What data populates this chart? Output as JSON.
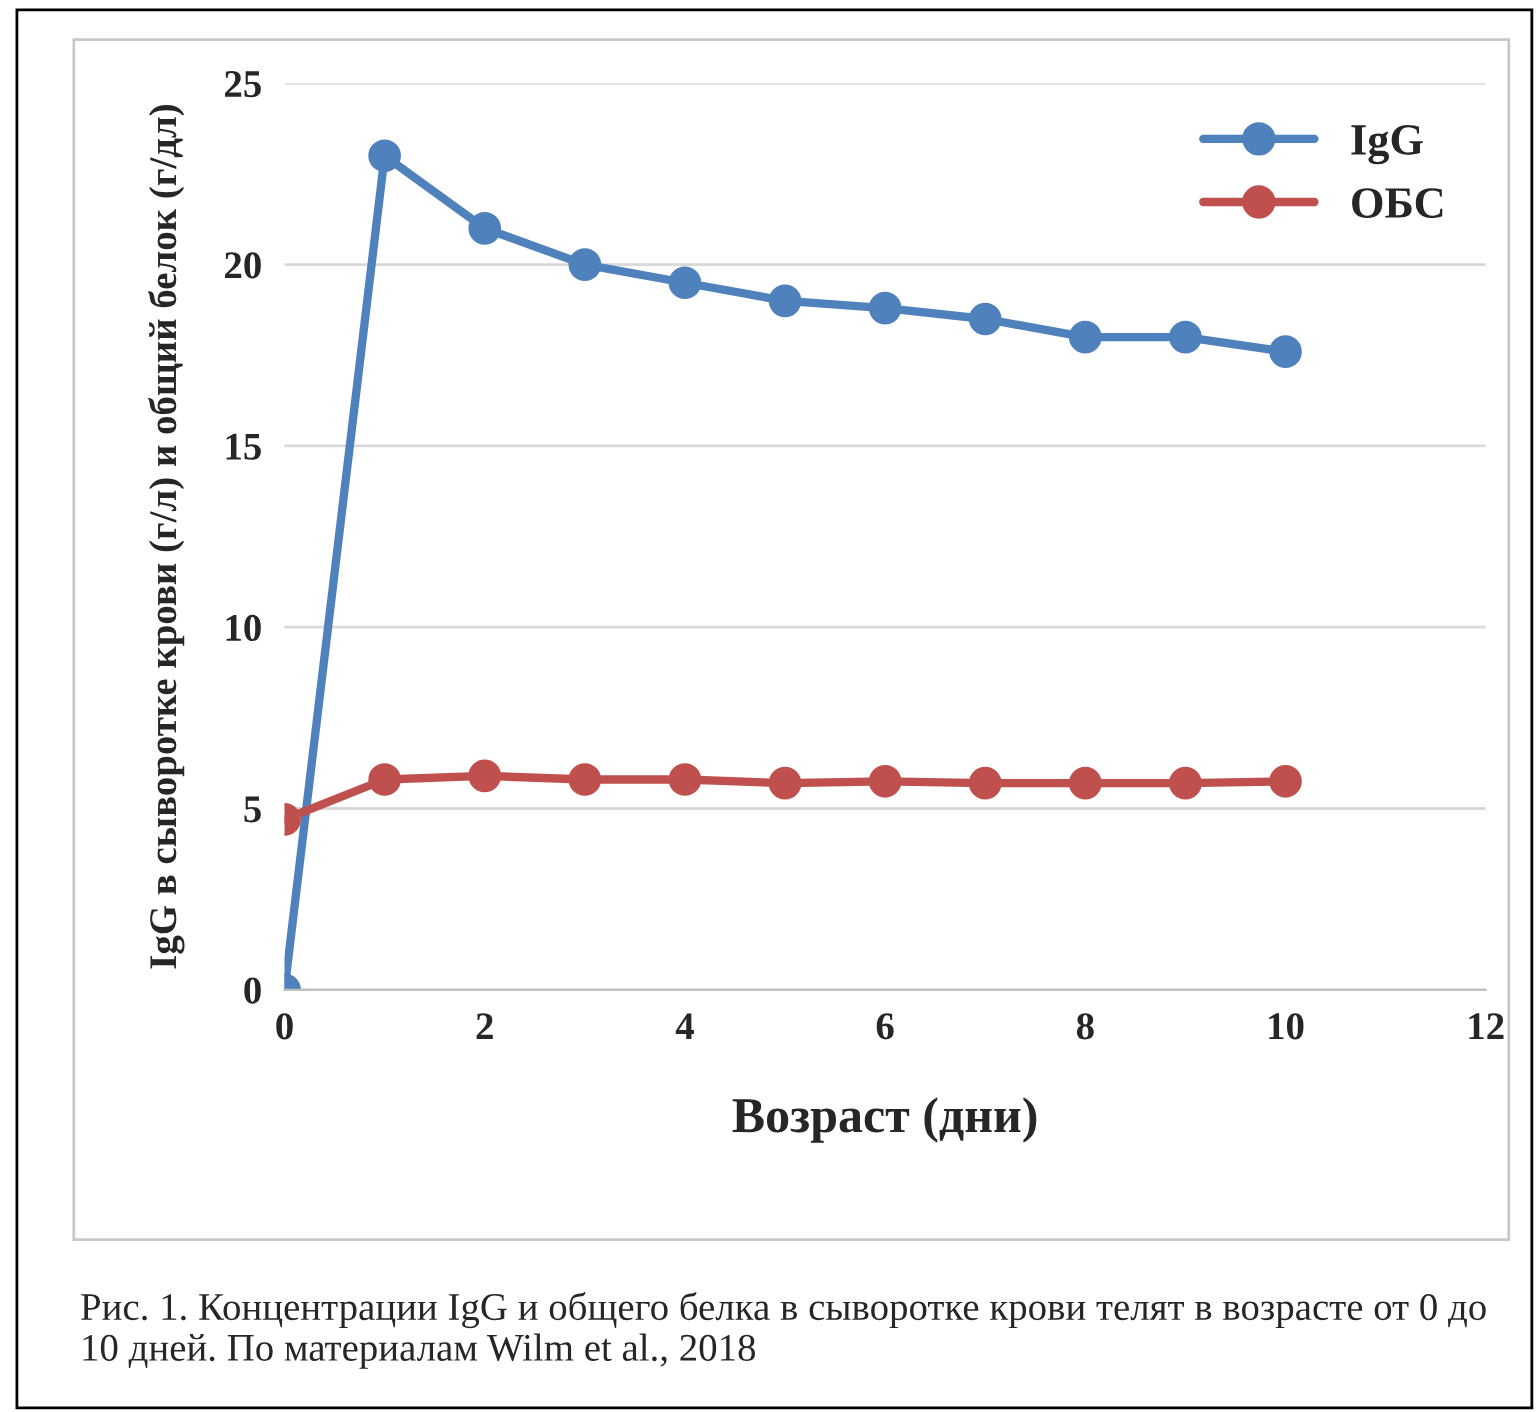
{
  "chart_data": {
    "type": "line",
    "xlabel": "Возраст (дни)",
    "ylabel": "IgG в сыворотке крови (г/л) и общий белок (г/дл)",
    "x": [
      0,
      1,
      2,
      3,
      4,
      5,
      6,
      7,
      8,
      9,
      10
    ],
    "series": [
      {
        "name": "IgG",
        "color": "#4f81bd",
        "values": [
          0,
          23,
          21,
          20,
          19.5,
          19,
          18.8,
          18.5,
          18,
          18,
          17.6
        ]
      },
      {
        "name": "ОБС",
        "color": "#c0504d",
        "values": [
          4.7,
          5.8,
          5.9,
          5.8,
          5.8,
          5.7,
          5.75,
          5.7,
          5.7,
          5.7,
          5.75
        ]
      }
    ],
    "xlim": [
      0,
      12
    ],
    "xticks": [
      0,
      2,
      4,
      6,
      8,
      10,
      12
    ],
    "ylim": [
      0,
      25
    ],
    "yticks": [
      0,
      5,
      10,
      15,
      20,
      25
    ],
    "grid": "y",
    "legend": "top right",
    "marker": "circle",
    "line_style": "solid",
    "annotations": [
      "Рис. 1. Концентрации IgG и общего белка в сыворотке крови телят в возрасте от 0 до 10 дней. По материалам Wilm et al., 2018"
    ]
  }
}
